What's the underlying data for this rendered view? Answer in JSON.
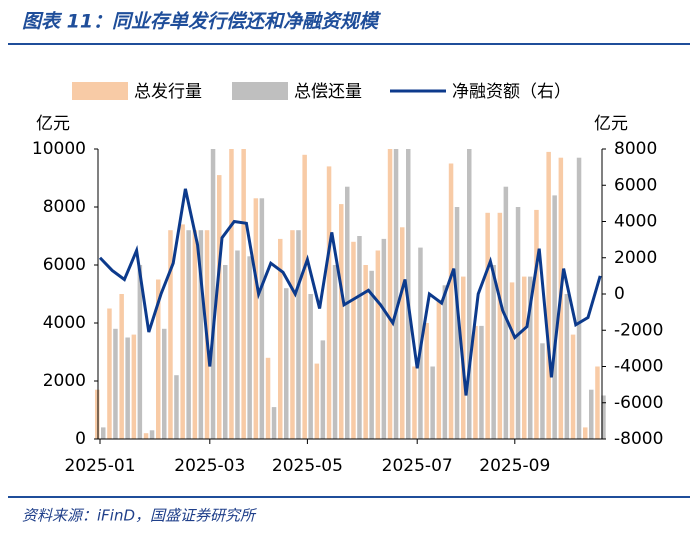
{
  "chart_data": {
    "type": "bar_line",
    "title": "图表 11：同业存单发行偿还和净融资规模",
    "source": "资料来源：iFinD，国盛证券研究所",
    "y_label": "亿元",
    "y2_label": "亿元",
    "categories": [
      "2025-01",
      null,
      null,
      null,
      null,
      null,
      null,
      null,
      null,
      "2025-03",
      null,
      null,
      null,
      null,
      null,
      null,
      null,
      "2025-05",
      null,
      null,
      null,
      null,
      null,
      null,
      null,
      null,
      "2025-07",
      null,
      null,
      null,
      null,
      null,
      null,
      null,
      "2025-09",
      null,
      null,
      null,
      null,
      null,
      null,
      null
    ],
    "series": [
      {
        "name": "总发行量",
        "color": "#f8cba6",
        "values": [
          1700,
          4500,
          5000,
          3600,
          200,
          5500,
          7200,
          7400,
          7200,
          7200,
          9100,
          10500,
          10200,
          8300,
          2800,
          6900,
          7200,
          9800,
          2600,
          9400,
          8100,
          6800,
          6000,
          6500,
          10500,
          7300,
          2500,
          4000,
          4800,
          9500,
          5600,
          3900,
          7800,
          7800,
          5400,
          5600,
          7900,
          9900,
          9700,
          3600,
          400,
          2500
        ]
      },
      {
        "name": "总偿还量",
        "color": "#bfbfbf",
        "values": [
          400,
          3800,
          3500,
          6000,
          300,
          3800,
          2200,
          7200,
          7200,
          10500,
          6000,
          6500,
          6300,
          8300,
          1100,
          5200,
          7200,
          5000,
          3400,
          6000,
          8700,
          7000,
          5800,
          6900,
          10500,
          10500,
          6600,
          2500,
          5300,
          8000,
          10000,
          3900,
          6000,
          8700,
          8000,
          5600,
          3300,
          8400,
          5000,
          9700,
          1700,
          1500
        ]
      },
      {
        "name": "净融资额（右）",
        "color": "#0c3a8c",
        "axis": "y2",
        "values": [
          2000,
          1300,
          800,
          2400,
          -2100,
          0,
          1700,
          5800,
          2700,
          -4000,
          3100,
          4000,
          3900,
          0,
          1700,
          1200,
          0,
          1900,
          -800,
          3400,
          -600,
          -200,
          200,
          -600,
          -1600,
          800,
          -4100,
          0,
          -500,
          1400,
          -5600,
          0,
          1800,
          -900,
          -2400,
          -1800,
          2500,
          -4600,
          1400,
          -1700,
          -1300,
          1000
        ]
      }
    ],
    "ylim": [
      0,
      10000
    ],
    "yticks": [
      0,
      2000,
      4000,
      6000,
      8000,
      10000
    ],
    "y2lim": [
      -8000,
      8000
    ],
    "y2ticks": [
      -8000,
      -6000,
      -4000,
      -2000,
      0,
      2000,
      4000,
      6000,
      8000
    ]
  }
}
